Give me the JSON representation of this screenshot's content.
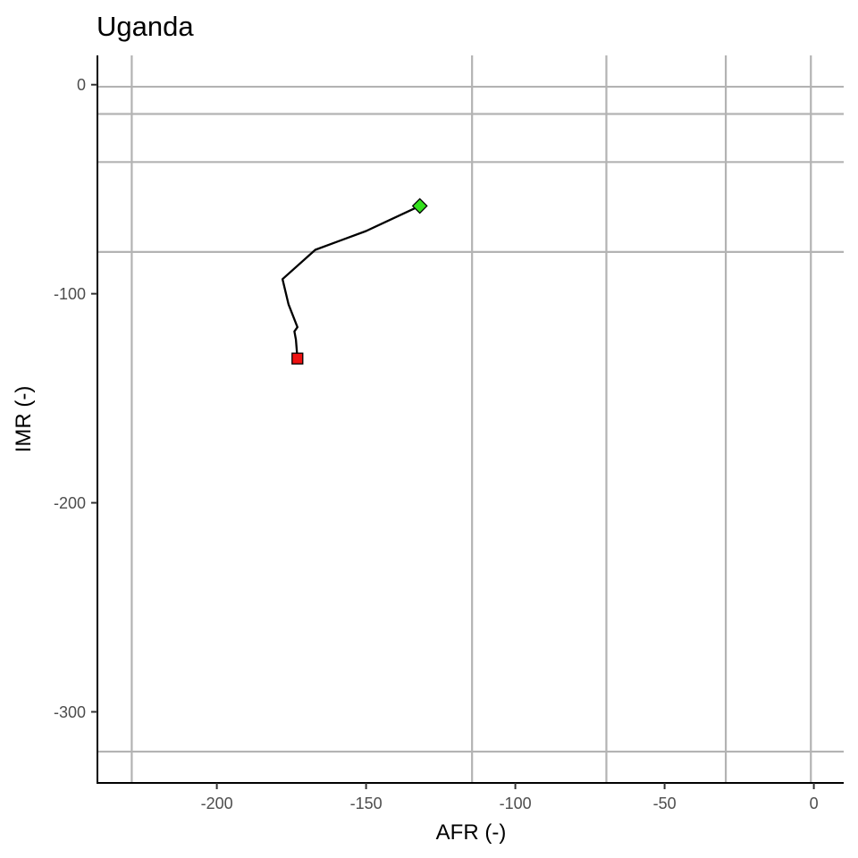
{
  "chart_data": {
    "type": "line",
    "title": "Uganda",
    "xlabel": "AFR (-)",
    "ylabel": "IMR (-)",
    "xlim": [
      -240,
      10
    ],
    "ylim": [
      -334,
      14
    ],
    "x_ticks": [
      -200,
      -150,
      -100,
      -50,
      0
    ],
    "y_ticks": [
      0,
      -100,
      -200,
      -300
    ],
    "x_tick_labels": [
      "-200",
      "-150",
      "-100",
      "-50",
      "0"
    ],
    "y_tick_labels": [
      "0",
      "-100",
      "-200",
      "-300"
    ],
    "grid": true,
    "vertical_reference_lines": [
      -228.5,
      -114.5,
      -69.5,
      -29.5,
      -1
    ],
    "horizontal_reference_lines": [
      -1,
      -14,
      -37,
      -80,
      -319
    ],
    "series": [
      {
        "x": [
          -132,
          -150,
          -167,
          -178,
          -176,
          -173,
          -174,
          -173.5,
          -173
        ],
        "y": [
          -58,
          -70,
          -79,
          -93,
          -105,
          -116,
          -118,
          -122,
          -131
        ]
      }
    ],
    "start_marker": {
      "x": -132,
      "y": -58,
      "shape": "diamond",
      "color": "#33e01c"
    },
    "end_marker": {
      "x": -173,
      "y": -131,
      "shape": "square",
      "color": "#ee1111"
    },
    "colors": {
      "grid": "#b3b3b3",
      "line": "#000000"
    }
  }
}
